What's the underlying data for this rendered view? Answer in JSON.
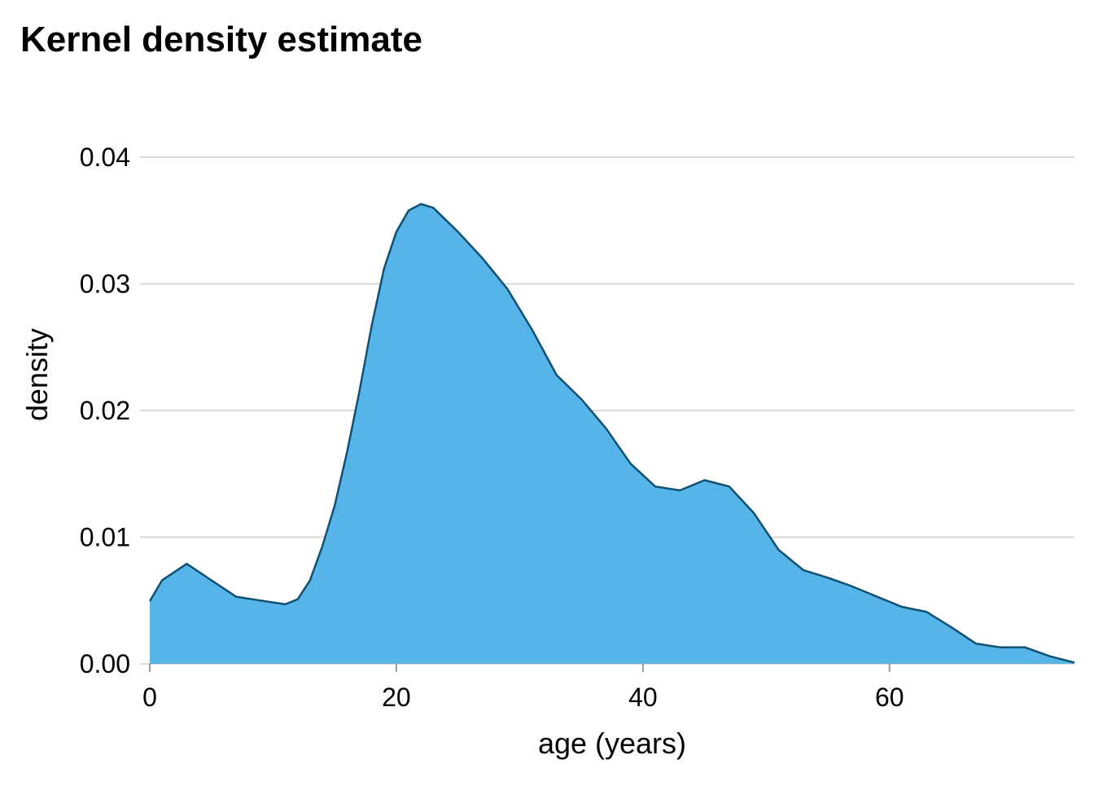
{
  "chart_data": {
    "type": "area",
    "title": "Kernel density estimate",
    "x_label": "age (years)",
    "y_label": "density",
    "x": [
      0,
      1,
      3,
      5,
      7,
      9,
      11,
      12,
      13,
      14,
      15,
      16,
      17,
      18,
      19,
      20,
      21,
      22,
      23,
      25,
      27,
      29,
      31,
      33,
      35,
      37,
      39,
      41,
      43,
      45,
      47,
      49,
      51,
      53,
      55,
      57,
      59,
      61,
      63,
      65,
      67,
      69,
      71,
      73,
      75
    ],
    "values": [
      0.00495,
      0.0066,
      0.0079,
      0.0066,
      0.0053,
      0.005,
      0.0047,
      0.0051,
      0.0066,
      0.0093,
      0.0125,
      0.0167,
      0.0215,
      0.0267,
      0.0312,
      0.0341,
      0.0358,
      0.0363,
      0.036,
      0.0341,
      0.032,
      0.0296,
      0.0264,
      0.0228,
      0.0209,
      0.0186,
      0.0158,
      0.014,
      0.0137,
      0.0145,
      0.014,
      0.0119,
      0.009,
      0.0074,
      0.0068,
      0.0061,
      0.0053,
      0.0045,
      0.0041,
      0.0029,
      0.0016,
      0.0013,
      0.0013,
      0.0006,
      0.0001
    ],
    "color": "#56b4e9",
    "line_color": "#0f5173",
    "xlim": [
      0,
      75
    ],
    "xticks": [
      0,
      20,
      40,
      60
    ],
    "ylim": [
      0,
      0.04
    ],
    "yticks": [
      {
        "value": 0,
        "label": "0.00"
      },
      0.01,
      0.02,
      0.03,
      0.04
    ],
    "grid": true
  }
}
